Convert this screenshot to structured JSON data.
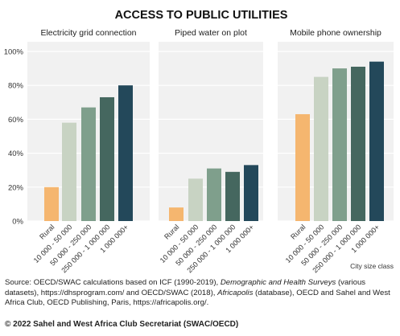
{
  "chart_data": {
    "type": "bar",
    "title": "ACCESS TO PUBLIC UTILITIES",
    "categories": [
      "Rural",
      "10 000 - 50 000",
      "50 000 - 250 000",
      "250 000 - 1 000 000",
      "1 000 000+"
    ],
    "y_ticks": [
      "0%",
      "20%",
      "40%",
      "60%",
      "80%",
      "100%"
    ],
    "ylim": [
      0,
      100
    ],
    "grid": true,
    "xlabel": "City size class",
    "colors": [
      "#f5b66f",
      "#c8d3c3",
      "#7f9f8c",
      "#45675f",
      "#23485a"
    ],
    "panels": [
      {
        "name": "Electricity grid connection",
        "values": [
          20,
          58,
          67,
          73,
          80
        ]
      },
      {
        "name": "Piped water on plot",
        "values": [
          8,
          25,
          31,
          29,
          33
        ]
      },
      {
        "name": "Mobile phone ownership",
        "values": [
          63,
          85,
          90,
          91,
          94
        ]
      }
    ]
  },
  "source": {
    "prefix": "Source: OECD/SWAC calculations based on ICF (1990-2019), ",
    "title1": "Demographic and Health Surveys",
    "mid1": " (various datasets), https://dhsprogram.com/ and OECD/SWAC (2018), ",
    "title2": "Africapolis",
    "suffix": " (database), OECD and Sahel and West Africa Club, OECD Publishing, Paris, https://africapolis.org/."
  },
  "copyright": "© 2022 Sahel and West Africa Club Secretariat (SWAC/OECD)"
}
